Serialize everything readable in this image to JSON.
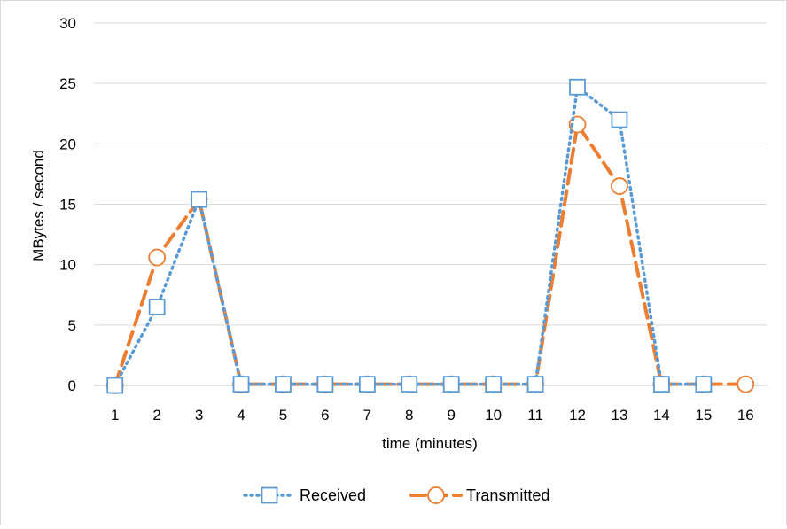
{
  "chart_data": {
    "type": "line",
    "title": "",
    "xlabel": "time (minutes)",
    "ylabel": "MBytes / second",
    "x": [
      1,
      2,
      3,
      4,
      5,
      6,
      7,
      8,
      9,
      10,
      11,
      12,
      13,
      14,
      15,
      16
    ],
    "ylim": [
      0,
      30
    ],
    "yticks": [
      0,
      5,
      10,
      15,
      20,
      25,
      30
    ],
    "grid": true,
    "legend_position": "bottom",
    "series": [
      {
        "name": "Received",
        "color": "#5b9bd5",
        "line_style": "dotted",
        "marker": "square",
        "x": [
          1,
          2,
          3,
          4,
          5,
          6,
          7,
          8,
          9,
          10,
          11,
          12,
          13,
          14,
          15
        ],
        "values": [
          0,
          6.5,
          15.4,
          0.1,
          0.1,
          0.1,
          0.1,
          0.1,
          0.1,
          0.1,
          0.1,
          24.7,
          22.0,
          0.1,
          0.1
        ]
      },
      {
        "name": "Transmitted",
        "color": "#ed7d31",
        "line_style": "dashed",
        "marker": "circle",
        "x": [
          1,
          2,
          3,
          4,
          5,
          6,
          7,
          8,
          9,
          10,
          11,
          12,
          13,
          14,
          15,
          16
        ],
        "values": [
          0,
          10.6,
          15.4,
          0.1,
          0.1,
          0.1,
          0.1,
          0.1,
          0.1,
          0.1,
          0.1,
          21.6,
          16.5,
          0.1,
          0.1,
          0.1
        ]
      }
    ]
  }
}
